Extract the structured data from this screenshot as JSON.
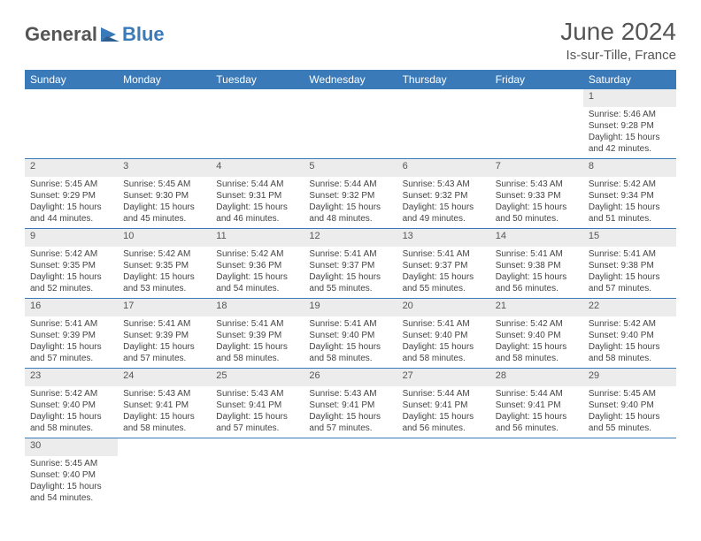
{
  "branding": {
    "logo_part1": "General",
    "logo_part2": "Blue",
    "logo_color_gray": "#555555",
    "logo_color_blue": "#3a7ab8"
  },
  "header": {
    "title": "June 2024",
    "location": "Is-sur-Tille, France"
  },
  "styling": {
    "header_bg": "#3a7ab8",
    "header_text": "#ffffff",
    "daynum_bg": "#ececec",
    "cell_border": "#3a7ab8",
    "body_font_size": 10,
    "day_font_size": 11,
    "header_font_size": 12
  },
  "weekdays": [
    "Sunday",
    "Monday",
    "Tuesday",
    "Wednesday",
    "Thursday",
    "Friday",
    "Saturday"
  ],
  "weeks": [
    {
      "nums": [
        "",
        "",
        "",
        "",
        "",
        "",
        "1"
      ],
      "cells": [
        "",
        "",
        "",
        "",
        "",
        "",
        "Sunrise: 5:46 AM\nSunset: 9:28 PM\nDaylight: 15 hours and 42 minutes."
      ]
    },
    {
      "nums": [
        "2",
        "3",
        "4",
        "5",
        "6",
        "7",
        "8"
      ],
      "cells": [
        "Sunrise: 5:45 AM\nSunset: 9:29 PM\nDaylight: 15 hours and 44 minutes.",
        "Sunrise: 5:45 AM\nSunset: 9:30 PM\nDaylight: 15 hours and 45 minutes.",
        "Sunrise: 5:44 AM\nSunset: 9:31 PM\nDaylight: 15 hours and 46 minutes.",
        "Sunrise: 5:44 AM\nSunset: 9:32 PM\nDaylight: 15 hours and 48 minutes.",
        "Sunrise: 5:43 AM\nSunset: 9:32 PM\nDaylight: 15 hours and 49 minutes.",
        "Sunrise: 5:43 AM\nSunset: 9:33 PM\nDaylight: 15 hours and 50 minutes.",
        "Sunrise: 5:42 AM\nSunset: 9:34 PM\nDaylight: 15 hours and 51 minutes."
      ]
    },
    {
      "nums": [
        "9",
        "10",
        "11",
        "12",
        "13",
        "14",
        "15"
      ],
      "cells": [
        "Sunrise: 5:42 AM\nSunset: 9:35 PM\nDaylight: 15 hours and 52 minutes.",
        "Sunrise: 5:42 AM\nSunset: 9:35 PM\nDaylight: 15 hours and 53 minutes.",
        "Sunrise: 5:42 AM\nSunset: 9:36 PM\nDaylight: 15 hours and 54 minutes.",
        "Sunrise: 5:41 AM\nSunset: 9:37 PM\nDaylight: 15 hours and 55 minutes.",
        "Sunrise: 5:41 AM\nSunset: 9:37 PM\nDaylight: 15 hours and 55 minutes.",
        "Sunrise: 5:41 AM\nSunset: 9:38 PM\nDaylight: 15 hours and 56 minutes.",
        "Sunrise: 5:41 AM\nSunset: 9:38 PM\nDaylight: 15 hours and 57 minutes."
      ]
    },
    {
      "nums": [
        "16",
        "17",
        "18",
        "19",
        "20",
        "21",
        "22"
      ],
      "cells": [
        "Sunrise: 5:41 AM\nSunset: 9:39 PM\nDaylight: 15 hours and 57 minutes.",
        "Sunrise: 5:41 AM\nSunset: 9:39 PM\nDaylight: 15 hours and 57 minutes.",
        "Sunrise: 5:41 AM\nSunset: 9:39 PM\nDaylight: 15 hours and 58 minutes.",
        "Sunrise: 5:41 AM\nSunset: 9:40 PM\nDaylight: 15 hours and 58 minutes.",
        "Sunrise: 5:41 AM\nSunset: 9:40 PM\nDaylight: 15 hours and 58 minutes.",
        "Sunrise: 5:42 AM\nSunset: 9:40 PM\nDaylight: 15 hours and 58 minutes.",
        "Sunrise: 5:42 AM\nSunset: 9:40 PM\nDaylight: 15 hours and 58 minutes."
      ]
    },
    {
      "nums": [
        "23",
        "24",
        "25",
        "26",
        "27",
        "28",
        "29"
      ],
      "cells": [
        "Sunrise: 5:42 AM\nSunset: 9:40 PM\nDaylight: 15 hours and 58 minutes.",
        "Sunrise: 5:43 AM\nSunset: 9:41 PM\nDaylight: 15 hours and 58 minutes.",
        "Sunrise: 5:43 AM\nSunset: 9:41 PM\nDaylight: 15 hours and 57 minutes.",
        "Sunrise: 5:43 AM\nSunset: 9:41 PM\nDaylight: 15 hours and 57 minutes.",
        "Sunrise: 5:44 AM\nSunset: 9:41 PM\nDaylight: 15 hours and 56 minutes.",
        "Sunrise: 5:44 AM\nSunset: 9:41 PM\nDaylight: 15 hours and 56 minutes.",
        "Sunrise: 5:45 AM\nSunset: 9:40 PM\nDaylight: 15 hours and 55 minutes."
      ]
    },
    {
      "nums": [
        "30",
        "",
        "",
        "",
        "",
        "",
        ""
      ],
      "cells": [
        "Sunrise: 5:45 AM\nSunset: 9:40 PM\nDaylight: 15 hours and 54 minutes.",
        "",
        "",
        "",
        "",
        "",
        ""
      ]
    }
  ]
}
